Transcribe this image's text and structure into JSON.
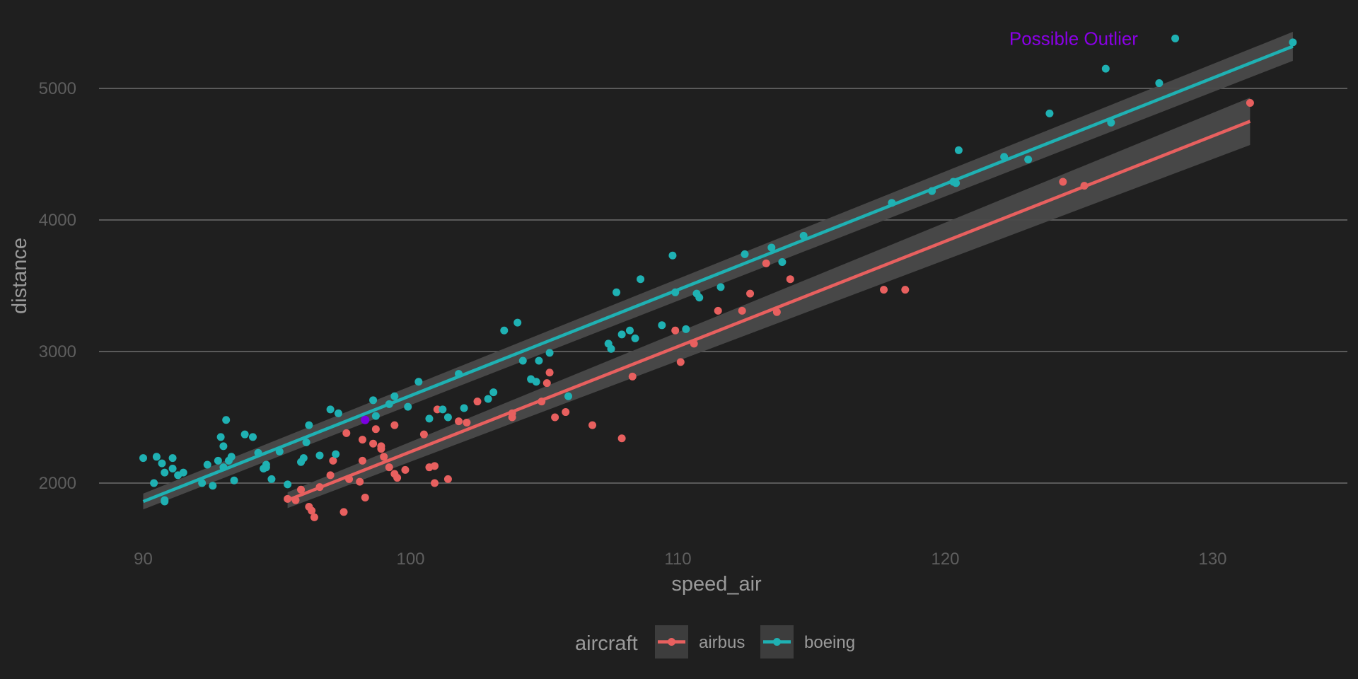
{
  "chart_data": {
    "type": "scatter",
    "xlabel": "speed_air",
    "ylabel": "distance",
    "xlim": [
      87.5,
      135
    ],
    "ylim": [
      1530,
      5650
    ],
    "x_ticks": [
      90,
      100,
      110,
      120,
      130
    ],
    "y_ticks": [
      2000,
      3000,
      4000,
      5000
    ],
    "grid": "horizontal major lines only",
    "legend": {
      "title": "aircraft",
      "position": "bottom",
      "entries": [
        "airbus",
        "boeing"
      ]
    },
    "colors": {
      "background": "#1f1f1f",
      "grid": "#5a5a5a",
      "ribbon": "#4a4a4a",
      "legend_key_bg": "#3d3d3d",
      "airbus": "#e8605f",
      "boeing": "#1fb1b3",
      "highlight": "#7a00e0"
    },
    "series": [
      {
        "name": "airbus",
        "color": "#e8605f",
        "fit": {
          "x_start": 95.4,
          "y_start": 1870,
          "x_end": 131.4,
          "y_end": 4750,
          "band_start": 60,
          "band_end": 180
        },
        "points": [
          [
            95.4,
            1880
          ],
          [
            95.7,
            1870
          ],
          [
            95.9,
            1950
          ],
          [
            96.2,
            1820
          ],
          [
            96.3,
            1790
          ],
          [
            96.4,
            1740
          ],
          [
            96.6,
            1970
          ],
          [
            97.0,
            2060
          ],
          [
            97.1,
            2170
          ],
          [
            97.5,
            1780
          ],
          [
            97.6,
            2380
          ],
          [
            97.7,
            2030
          ],
          [
            98.1,
            2010
          ],
          [
            98.2,
            2330
          ],
          [
            98.2,
            2170
          ],
          [
            98.3,
            1890
          ],
          [
            98.6,
            2300
          ],
          [
            98.7,
            2410
          ],
          [
            98.9,
            2280
          ],
          [
            98.9,
            2260
          ],
          [
            99.0,
            2200
          ],
          [
            99.2,
            2120
          ],
          [
            99.4,
            2070
          ],
          [
            99.4,
            2440
          ],
          [
            99.5,
            2040
          ],
          [
            99.8,
            2100
          ],
          [
            100.5,
            2370
          ],
          [
            100.7,
            2120
          ],
          [
            100.9,
            2130
          ],
          [
            100.9,
            2000
          ],
          [
            101.0,
            2560
          ],
          [
            101.4,
            2030
          ],
          [
            101.8,
            2470
          ],
          [
            102.1,
            2460
          ],
          [
            102.5,
            2620
          ],
          [
            103.8,
            2500
          ],
          [
            103.8,
            2530
          ],
          [
            104.9,
            2620
          ],
          [
            105.1,
            2760
          ],
          [
            105.2,
            2840
          ],
          [
            105.4,
            2500
          ],
          [
            105.8,
            2540
          ],
          [
            106.8,
            2440
          ],
          [
            107.9,
            2340
          ],
          [
            108.3,
            2810
          ],
          [
            109.9,
            3160
          ],
          [
            110.1,
            2920
          ],
          [
            110.6,
            3060
          ],
          [
            111.5,
            3310
          ],
          [
            112.4,
            3310
          ],
          [
            112.7,
            3440
          ],
          [
            113.3,
            3670
          ],
          [
            113.7,
            3300
          ],
          [
            114.2,
            3550
          ],
          [
            117.7,
            3470
          ],
          [
            118.5,
            3470
          ],
          [
            124.4,
            4290
          ],
          [
            125.2,
            4260
          ],
          [
            131.4,
            4890
          ]
        ]
      },
      {
        "name": "boeing",
        "color": "#1fb1b3",
        "fit": {
          "x_start": 90,
          "y_start": 1860,
          "x_end": 133.0,
          "y_end": 5320,
          "band_start": 60,
          "band_end": 110
        },
        "points": [
          [
            90.0,
            2190
          ],
          [
            90.4,
            2000
          ],
          [
            90.5,
            2200
          ],
          [
            90.7,
            2150
          ],
          [
            90.8,
            2080
          ],
          [
            90.8,
            1870
          ],
          [
            90.8,
            1860
          ],
          [
            91.1,
            2110
          ],
          [
            91.1,
            2190
          ],
          [
            91.3,
            2060
          ],
          [
            91.5,
            2080
          ],
          [
            92.2,
            2000
          ],
          [
            92.4,
            2140
          ],
          [
            92.6,
            1980
          ],
          [
            92.8,
            2170
          ],
          [
            92.9,
            2350
          ],
          [
            93.0,
            2280
          ],
          [
            93.0,
            2120
          ],
          [
            93.1,
            2480
          ],
          [
            93.2,
            2170
          ],
          [
            93.3,
            2200
          ],
          [
            93.4,
            2020
          ],
          [
            93.8,
            2370
          ],
          [
            94.1,
            2350
          ],
          [
            94.3,
            2230
          ],
          [
            94.5,
            2110
          ],
          [
            94.6,
            2140
          ],
          [
            94.6,
            2120
          ],
          [
            94.8,
            2030
          ],
          [
            95.1,
            2240
          ],
          [
            95.4,
            1990
          ],
          [
            95.9,
            2160
          ],
          [
            96.0,
            2190
          ],
          [
            96.1,
            2310
          ],
          [
            96.2,
            2440
          ],
          [
            96.6,
            2210
          ],
          [
            97.0,
            2560
          ],
          [
            97.2,
            2220
          ],
          [
            97.3,
            2530
          ],
          [
            98.3,
            2480
          ],
          [
            98.6,
            2630
          ],
          [
            98.7,
            2510
          ],
          [
            99.2,
            2600
          ],
          [
            99.4,
            2660
          ],
          [
            99.9,
            2580
          ],
          [
            100.3,
            2770
          ],
          [
            100.7,
            2490
          ],
          [
            101.2,
            2560
          ],
          [
            101.4,
            2500
          ],
          [
            101.8,
            2830
          ],
          [
            102.0,
            2570
          ],
          [
            102.9,
            2640
          ],
          [
            103.1,
            2690
          ],
          [
            103.5,
            3160
          ],
          [
            104.0,
            3220
          ],
          [
            104.2,
            2930
          ],
          [
            104.5,
            2790
          ],
          [
            104.7,
            2770
          ],
          [
            104.8,
            2930
          ],
          [
            105.2,
            2990
          ],
          [
            105.9,
            2660
          ],
          [
            107.4,
            3060
          ],
          [
            107.5,
            3020
          ],
          [
            107.7,
            3450
          ],
          [
            107.9,
            3130
          ],
          [
            108.2,
            3160
          ],
          [
            108.4,
            3100
          ],
          [
            108.6,
            3550
          ],
          [
            109.4,
            3200
          ],
          [
            109.8,
            3730
          ],
          [
            109.9,
            3450
          ],
          [
            110.3,
            3170
          ],
          [
            110.7,
            3440
          ],
          [
            110.8,
            3410
          ],
          [
            111.6,
            3490
          ],
          [
            112.5,
            3740
          ],
          [
            113.5,
            3790
          ],
          [
            113.9,
            3680
          ],
          [
            114.7,
            3880
          ],
          [
            118.0,
            4130
          ],
          [
            119.5,
            4220
          ],
          [
            120.3,
            4290
          ],
          [
            120.4,
            4280
          ],
          [
            120.5,
            4530
          ],
          [
            122.2,
            4480
          ],
          [
            123.1,
            4460
          ],
          [
            123.9,
            4810
          ],
          [
            126.0,
            5150
          ],
          [
            126.2,
            4740
          ],
          [
            128.0,
            5040
          ],
          [
            128.6,
            5380
          ],
          [
            133.0,
            5350
          ]
        ]
      }
    ],
    "highlight_point": {
      "x": 98.3,
      "y": 2480,
      "color": "#7a00e0"
    },
    "annotations": [
      {
        "text": "Possible Outlier",
        "x": 124.8,
        "y": 5380,
        "color": "#8a00e6",
        "anchor": "middle"
      }
    ]
  }
}
